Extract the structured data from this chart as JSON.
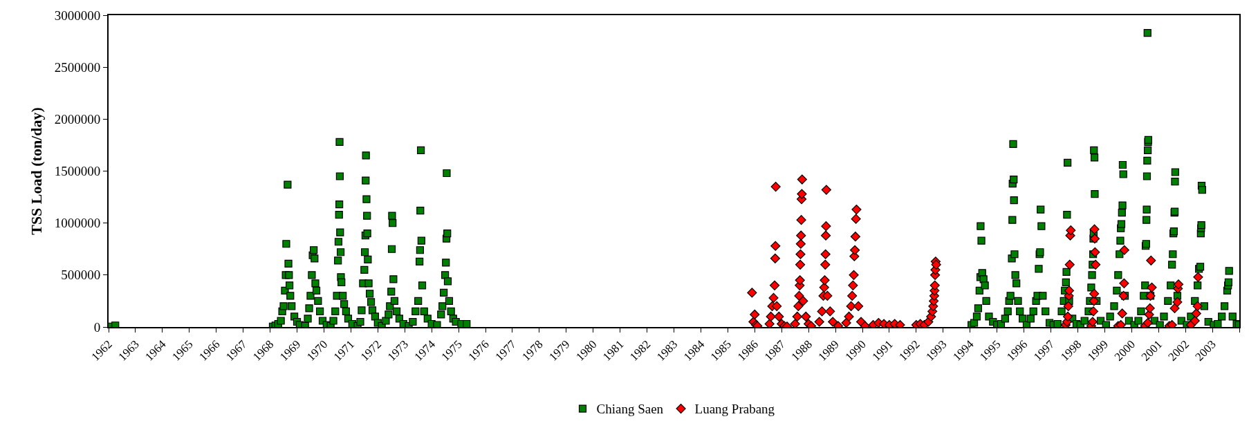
{
  "chart_data": {
    "type": "scatter",
    "ylabel": "TSS Load (ton/day)",
    "legend": "bottom",
    "xlim": [
      1962,
      2004
    ],
    "ylim": [
      0,
      3000000
    ],
    "xticks": [
      1962,
      1963,
      1964,
      1965,
      1966,
      1967,
      1968,
      1969,
      1970,
      1971,
      1972,
      1973,
      1974,
      1975,
      1976,
      1977,
      1978,
      1979,
      1980,
      1981,
      1982,
      1983,
      1984,
      1985,
      1986,
      1987,
      1988,
      1989,
      1990,
      1991,
      1992,
      1993,
      1994,
      1995,
      1996,
      1997,
      1998,
      1999,
      2000,
      2001,
      2002,
      2003,
      {
        "value": 2004,
        "label": null
      }
    ],
    "yticks": [
      0,
      500000,
      1000000,
      1500000,
      2000000,
      2500000,
      3000000
    ],
    "series": [
      {
        "name": "Chiang Saen",
        "color": "#008000",
        "marker": "square",
        "x": [
          1962.05,
          1962.25,
          1968.1,
          1968.2,
          1968.3,
          1968.4,
          1968.45,
          1968.5,
          1968.55,
          1968.58,
          1968.6,
          1968.65,
          1968.68,
          1968.7,
          1968.72,
          1968.75,
          1968.8,
          1968.9,
          1969.0,
          1969.1,
          1969.3,
          1969.4,
          1969.45,
          1969.5,
          1969.55,
          1969.58,
          1969.62,
          1969.65,
          1969.68,
          1969.72,
          1969.78,
          1969.85,
          1969.95,
          1970.1,
          1970.25,
          1970.35,
          1970.42,
          1970.48,
          1970.52,
          1970.54,
          1970.56,
          1970.57,
          1970.58,
          1970.59,
          1970.6,
          1970.62,
          1970.63,
          1970.65,
          1970.7,
          1970.75,
          1970.82,
          1970.9,
          1971.05,
          1971.25,
          1971.35,
          1971.4,
          1971.45,
          1971.5,
          1971.52,
          1971.54,
          1971.55,
          1971.56,
          1971.58,
          1971.6,
          1971.61,
          1971.63,
          1971.66,
          1971.7,
          1971.75,
          1971.8,
          1971.9,
          1972.0,
          1972.15,
          1972.3,
          1972.4,
          1972.45,
          1972.5,
          1972.52,
          1972.53,
          1972.55,
          1972.58,
          1972.62,
          1972.7,
          1972.8,
          1972.95,
          1973.15,
          1973.3,
          1973.4,
          1973.5,
          1973.55,
          1973.57,
          1973.58,
          1973.6,
          1973.62,
          1973.65,
          1973.72,
          1973.85,
          1974.0,
          1974.2,
          1974.35,
          1974.4,
          1974.45,
          1974.5,
          1974.53,
          1974.55,
          1974.56,
          1974.58,
          1974.6,
          1974.65,
          1974.72,
          1974.8,
          1974.9,
          1975.1,
          1975.3,
          1994.05,
          1994.15,
          1994.25,
          1994.3,
          1994.35,
          1994.38,
          1994.39,
          1994.42,
          1994.45,
          1994.5,
          1994.55,
          1994.6,
          1994.7,
          1994.85,
          1995.0,
          1995.15,
          1995.3,
          1995.4,
          1995.45,
          1995.5,
          1995.55,
          1995.57,
          1995.58,
          1995.6,
          1995.62,
          1995.63,
          1995.65,
          1995.68,
          1995.72,
          1995.78,
          1995.85,
          1995.95,
          1996.1,
          1996.25,
          1996.35,
          1996.45,
          1996.5,
          1996.55,
          1996.58,
          1996.6,
          1996.62,
          1996.65,
          1996.7,
          1996.8,
          1996.95,
          1997.1,
          1997.25,
          1997.4,
          1997.48,
          1997.52,
          1997.56,
          1997.58,
          1997.6,
          1997.62,
          1997.68,
          1997.8,
          1997.95,
          1998.1,
          1998.25,
          1998.4,
          1998.45,
          1998.5,
          1998.53,
          1998.55,
          1998.57,
          1998.58,
          1998.59,
          1998.6,
          1998.62,
          1998.63,
          1998.7,
          1998.85,
          1999.05,
          1999.2,
          1999.35,
          1999.45,
          1999.5,
          1999.55,
          1999.58,
          1999.6,
          1999.62,
          1999.64,
          1999.66,
          1999.67,
          1999.69,
          1999.75,
          1999.9,
          2000.1,
          2000.25,
          2000.35,
          2000.45,
          2000.5,
          2000.52,
          2000.54,
          2000.55,
          2000.56,
          2000.57,
          2000.58,
          2000.59,
          2000.6,
          2000.61,
          2000.62,
          2000.7,
          2000.85,
          2001.05,
          2001.2,
          2001.35,
          2001.45,
          2001.5,
          2001.53,
          2001.55,
          2001.57,
          2001.59,
          2001.6,
          2001.61,
          2001.62,
          2001.7,
          2001.85,
          2002.05,
          2002.2,
          2002.35,
          2002.45,
          2002.5,
          2002.55,
          2002.57,
          2002.58,
          2002.59,
          2002.6,
          2002.62,
          2002.7,
          2002.85,
          2003.05,
          2003.2,
          2003.35,
          2003.45,
          2003.55,
          2003.58,
          2003.6,
          2003.62,
          2003.75,
          2003.9,
          2003.98
        ],
        "values": [
          5000,
          15000,
          5000,
          15000,
          30000,
          60000,
          150000,
          200000,
          350000,
          500000,
          800000,
          1370000,
          610000,
          500000,
          400000,
          300000,
          200000,
          100000,
          50000,
          20000,
          10000,
          80000,
          180000,
          300000,
          500000,
          690000,
          740000,
          660000,
          420000,
          350000,
          250000,
          150000,
          60000,
          20000,
          10000,
          60000,
          150000,
          300000,
          640000,
          820000,
          1080000,
          1180000,
          1780000,
          1450000,
          910000,
          720000,
          480000,
          430000,
          300000,
          220000,
          150000,
          80000,
          30000,
          10000,
          50000,
          160000,
          420000,
          550000,
          720000,
          880000,
          1410000,
          1650000,
          1230000,
          1070000,
          900000,
          650000,
          420000,
          320000,
          240000,
          160000,
          100000,
          40000,
          10000,
          60000,
          120000,
          200000,
          340000,
          750000,
          1070000,
          1000000,
          460000,
          250000,
          150000,
          80000,
          30000,
          10000,
          50000,
          150000,
          250000,
          630000,
          740000,
          1120000,
          1700000,
          830000,
          400000,
          150000,
          80000,
          30000,
          20000,
          120000,
          200000,
          330000,
          500000,
          620000,
          850000,
          1480000,
          900000,
          440000,
          250000,
          150000,
          80000,
          50000,
          30000,
          30000,
          20000,
          40000,
          100000,
          180000,
          350000,
          480000,
          970000,
          830000,
          520000,
          460000,
          400000,
          250000,
          100000,
          50000,
          20000,
          30000,
          80000,
          150000,
          250000,
          300000,
          660000,
          1030000,
          1380000,
          1760000,
          1420000,
          1220000,
          700000,
          500000,
          420000,
          250000,
          150000,
          80000,
          20000,
          80000,
          150000,
          250000,
          300000,
          560000,
          700000,
          720000,
          1130000,
          970000,
          300000,
          150000,
          40000,
          20000,
          30000,
          150000,
          250000,
          350000,
          430000,
          530000,
          1080000,
          1580000,
          250000,
          80000,
          30000,
          20000,
          60000,
          150000,
          250000,
          380000,
          500000,
          600000,
          700000,
          850000,
          900000,
          1700000,
          1630000,
          1280000,
          250000,
          60000,
          20000,
          100000,
          200000,
          350000,
          500000,
          700000,
          830000,
          950000,
          990000,
          1100000,
          1170000,
          1560000,
          1470000,
          300000,
          60000,
          20000,
          60000,
          150000,
          300000,
          400000,
          780000,
          800000,
          1030000,
          1130000,
          1450000,
          1600000,
          2830000,
          1700000,
          1780000,
          1800000,
          300000,
          60000,
          20000,
          100000,
          250000,
          400000,
          600000,
          700000,
          900000,
          920000,
          1100000,
          1110000,
          1400000,
          1490000,
          300000,
          60000,
          20000,
          100000,
          250000,
          400000,
          560000,
          580000,
          900000,
          950000,
          980000,
          1360000,
          1320000,
          200000,
          50000,
          20000,
          30000,
          100000,
          200000,
          350000,
          400000,
          430000,
          540000,
          100000,
          30000,
          20000
        ]
      },
      {
        "name": "Luang Prabang",
        "color": "#ff0000",
        "marker": "diamond",
        "x": [
          1985.9,
          1985.95,
          1986.0,
          1986.05,
          1986.1,
          1986.55,
          1986.6,
          1986.65,
          1986.7,
          1986.74,
          1986.76,
          1986.77,
          1986.78,
          1986.82,
          1986.9,
          1987.0,
          1987.1,
          1987.2,
          1987.5,
          1987.58,
          1987.62,
          1987.65,
          1987.67,
          1987.68,
          1987.69,
          1987.7,
          1987.71,
          1987.72,
          1987.73,
          1987.74,
          1987.75,
          1987.76,
          1987.8,
          1987.9,
          1988.0,
          1988.1,
          1988.4,
          1988.5,
          1988.55,
          1988.58,
          1988.6,
          1988.62,
          1988.63,
          1988.64,
          1988.65,
          1988.66,
          1988.7,
          1988.8,
          1988.9,
          1989.1,
          1989.4,
          1989.5,
          1989.58,
          1989.62,
          1989.65,
          1989.68,
          1989.7,
          1989.72,
          1989.74,
          1989.76,
          1989.78,
          1989.85,
          1989.95,
          1990.1,
          1990.4,
          1990.6,
          1990.8,
          1991.0,
          1991.2,
          1991.4,
          1992.0,
          1992.15,
          1992.3,
          1992.45,
          1992.55,
          1992.6,
          1992.63,
          1992.65,
          1992.67,
          1992.68,
          1992.69,
          1992.7,
          1992.71,
          1992.72,
          1992.74,
          1997.55,
          1997.6,
          1997.63,
          1997.65,
          1997.67,
          1997.68,
          1997.7,
          1997.72,
          1997.74,
          1998.5,
          1998.55,
          1998.58,
          1998.6,
          1998.61,
          1998.62,
          1998.63,
          1998.64,
          1998.66,
          1999.5,
          1999.6,
          1999.65,
          1999.7,
          1999.72,
          1999.73,
          2000.5,
          2000.6,
          2000.65,
          2000.68,
          2000.7,
          2000.72,
          2000.75,
          2001.4,
          2001.5,
          2001.6,
          2001.7,
          2001.72,
          2001.74,
          2002.2,
          2002.35,
          2002.4,
          2002.45,
          2002.47
        ],
        "values": [
          330000,
          50000,
          120000,
          20000,
          10000,
          30000,
          100000,
          200000,
          280000,
          400000,
          660000,
          780000,
          1350000,
          200000,
          100000,
          30000,
          10000,
          5000,
          30000,
          100000,
          200000,
          300000,
          400000,
          450000,
          600000,
          700000,
          800000,
          880000,
          1030000,
          1230000,
          1280000,
          1420000,
          250000,
          100000,
          30000,
          10000,
          50000,
          150000,
          300000,
          380000,
          450000,
          600000,
          700000,
          880000,
          970000,
          1320000,
          300000,
          150000,
          50000,
          10000,
          40000,
          100000,
          200000,
          300000,
          400000,
          500000,
          680000,
          740000,
          870000,
          1040000,
          1130000,
          200000,
          50000,
          10000,
          20000,
          40000,
          30000,
          20000,
          30000,
          20000,
          20000,
          30000,
          20000,
          50000,
          100000,
          150000,
          200000,
          250000,
          300000,
          350000,
          400000,
          500000,
          550000,
          630000,
          600000,
          20000,
          50000,
          100000,
          200000,
          300000,
          350000,
          600000,
          880000,
          930000,
          10000,
          50000,
          150000,
          250000,
          320000,
          940000,
          850000,
          720000,
          600000,
          10000,
          20000,
          130000,
          300000,
          420000,
          740000,
          10000,
          40000,
          120000,
          180000,
          300000,
          640000,
          380000,
          10000,
          20000,
          180000,
          240000,
          370000,
          410000,
          20000,
          60000,
          130000,
          200000,
          480000
        ]
      }
    ]
  }
}
